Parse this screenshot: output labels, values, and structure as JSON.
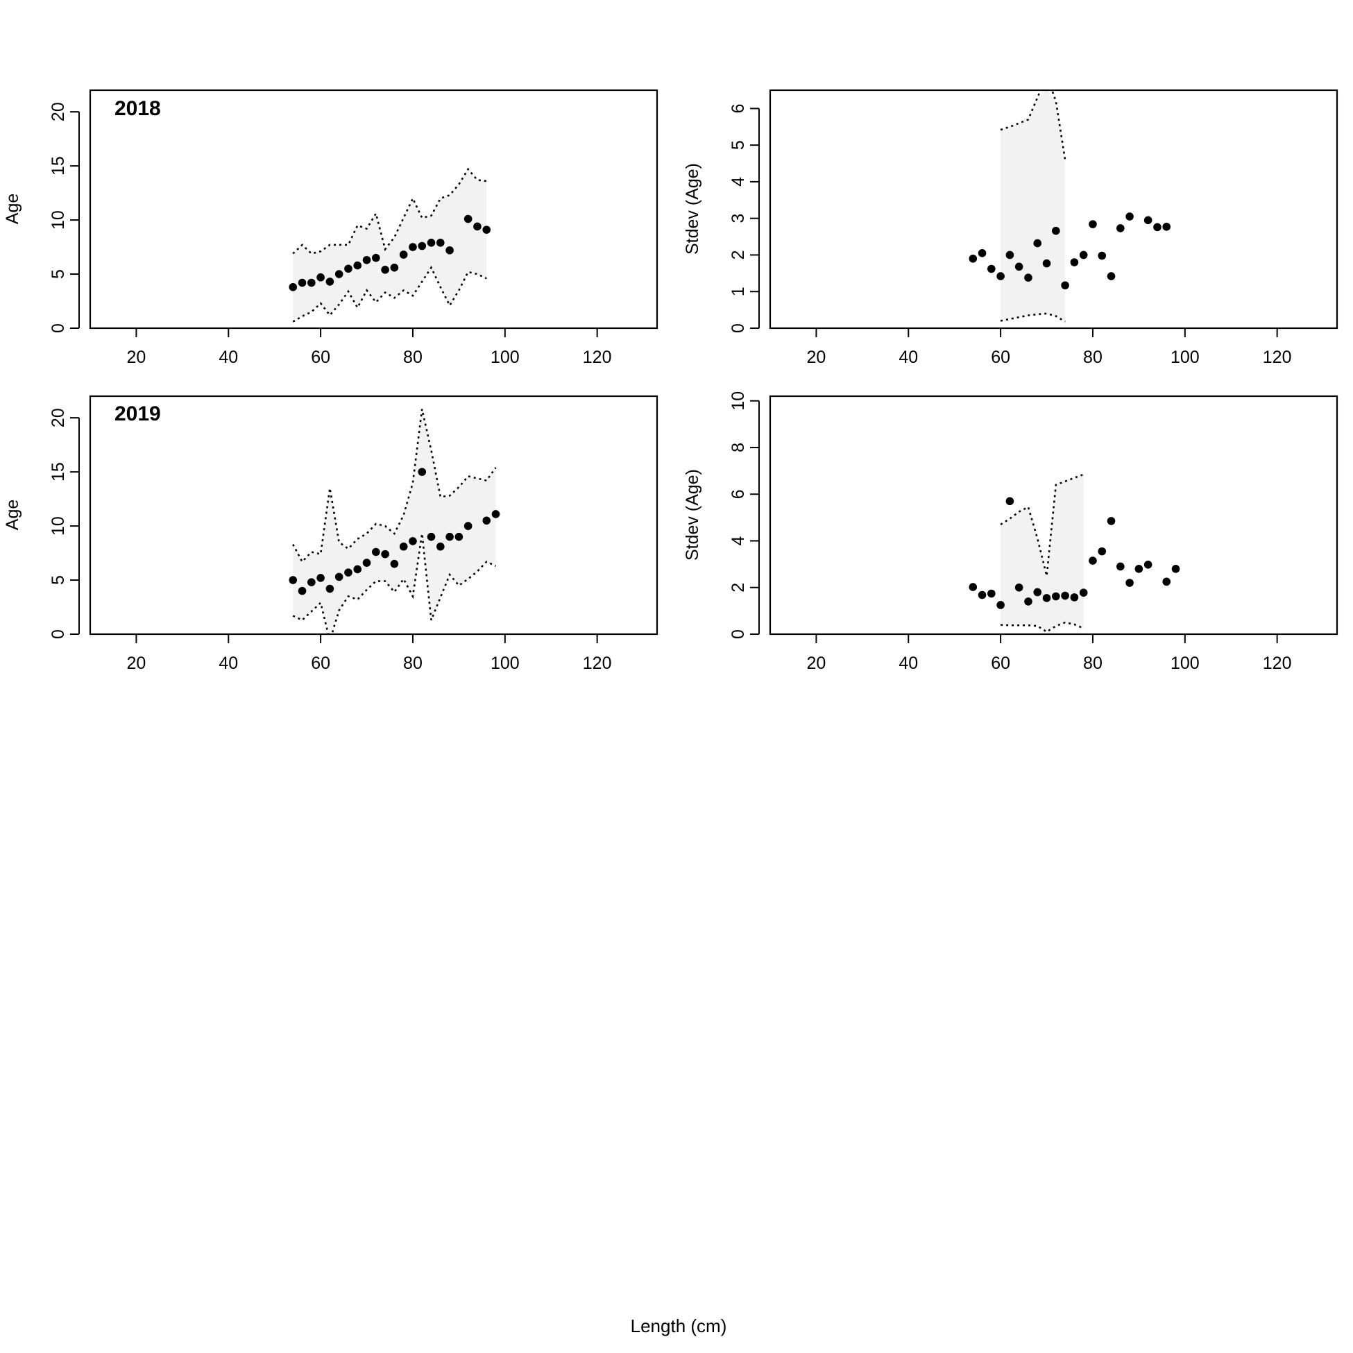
{
  "figure": {
    "xlabel": "Length (cm)"
  },
  "chart_data": [
    {
      "type": "scatter",
      "panel": "mean-age-2018",
      "title": "2018",
      "xlabel": "",
      "ylabel": "Age",
      "xlim": [
        10,
        133
      ],
      "ylim": [
        0,
        22
      ],
      "xticks": [
        20,
        40,
        60,
        80,
        100,
        120
      ],
      "yticks": [
        0,
        5,
        10,
        15,
        20
      ],
      "series": [
        {
          "x": [
            54,
            56,
            58,
            60,
            62,
            64,
            66,
            68,
            70,
            72,
            74,
            76,
            78,
            80,
            82,
            84,
            86,
            88,
            92,
            94,
            96
          ],
          "y": [
            3.8,
            4.2,
            4.2,
            4.7,
            4.3,
            5.0,
            5.5,
            5.8,
            6.3,
            6.5,
            5.4,
            5.6,
            6.8,
            7.5,
            7.6,
            7.9,
            7.9,
            7.2,
            10.1,
            9.4,
            9.1
          ]
        }
      ],
      "band": {
        "x": [
          54,
          56,
          58,
          60,
          62,
          64,
          66,
          68,
          70,
          72,
          74,
          76,
          78,
          80,
          82,
          84,
          86,
          88,
          90,
          92,
          94,
          96
        ],
        "upper": [
          6.9,
          7.7,
          6.9,
          7.1,
          7.7,
          7.7,
          7.7,
          9.5,
          9.2,
          10.6,
          7.3,
          8.4,
          10.2,
          12.0,
          10.2,
          10.4,
          12.0,
          12.3,
          13.3,
          14.7,
          13.7,
          13.6
        ],
        "lower": [
          0.6,
          1.1,
          1.5,
          2.3,
          1.2,
          2.2,
          3.4,
          1.9,
          3.5,
          2.4,
          3.3,
          2.8,
          3.5,
          3.0,
          4.3,
          5.6,
          3.8,
          2.1,
          3.5,
          5.2,
          5.0,
          4.6
        ]
      }
    },
    {
      "type": "scatter",
      "panel": "stdev-age-2018",
      "title": "",
      "xlabel": "",
      "ylabel": "Stdev (Age)",
      "xlim": [
        10,
        133
      ],
      "ylim": [
        0,
        6.5
      ],
      "xticks": [
        20,
        40,
        60,
        80,
        100,
        120
      ],
      "yticks": [
        0,
        1,
        2,
        3,
        4,
        5,
        6
      ],
      "series": [
        {
          "x": [
            54,
            56,
            58,
            60,
            62,
            64,
            66,
            68,
            70,
            72,
            74,
            76,
            78,
            80,
            82,
            84,
            86,
            88,
            92,
            94,
            96
          ],
          "y": [
            1.9,
            2.05,
            1.62,
            1.42,
            2.0,
            1.68,
            1.38,
            2.32,
            1.77,
            2.66,
            1.17,
            1.8,
            2.0,
            2.84,
            1.98,
            1.42,
            2.73,
            3.05,
            2.95,
            2.76,
            2.77
          ]
        }
      ],
      "band": {
        "x": [
          60,
          62,
          64,
          66,
          68,
          70,
          72,
          74
        ],
        "upper": [
          5.42,
          5.5,
          5.6,
          5.7,
          6.3,
          6.9,
          6.2,
          4.6
        ],
        "lower": [
          0.2,
          0.25,
          0.3,
          0.35,
          0.38,
          0.4,
          0.33,
          0.18
        ]
      }
    },
    {
      "type": "scatter",
      "panel": "mean-age-2019",
      "title": "2019",
      "xlabel": "",
      "ylabel": "Age",
      "xlim": [
        10,
        133
      ],
      "ylim": [
        0,
        22
      ],
      "xticks": [
        20,
        40,
        60,
        80,
        100,
        120
      ],
      "yticks": [
        0,
        5,
        10,
        15,
        20
      ],
      "series": [
        {
          "x": [
            54,
            56,
            58,
            60,
            62,
            64,
            66,
            68,
            70,
            72,
            74,
            76,
            78,
            80,
            82,
            84,
            86,
            88,
            90,
            92,
            96,
            98
          ],
          "y": [
            5.0,
            4.0,
            4.8,
            5.2,
            4.2,
            5.3,
            5.7,
            6.0,
            6.6,
            7.6,
            7.4,
            6.5,
            8.1,
            8.6,
            15.0,
            9.0,
            8.1,
            9.0,
            9.0,
            10.0,
            10.5,
            11.1
          ]
        }
      ],
      "band": {
        "x": [
          54,
          56,
          58,
          60,
          62,
          64,
          66,
          68,
          70,
          72,
          74,
          76,
          78,
          80,
          82,
          84,
          86,
          88,
          90,
          92,
          94,
          96,
          98
        ],
        "upper": [
          8.3,
          6.7,
          7.6,
          7.4,
          13.5,
          8.5,
          7.9,
          8.8,
          9.3,
          10.2,
          10.0,
          9.3,
          11.0,
          14.0,
          20.8,
          17.0,
          12.7,
          12.8,
          13.6,
          14.6,
          14.4,
          14.2,
          15.4
        ],
        "lower": [
          1.7,
          1.3,
          2.1,
          2.9,
          -0.6,
          2.2,
          3.5,
          3.2,
          4.1,
          4.9,
          4.9,
          3.9,
          5.1,
          3.5,
          9.3,
          1.3,
          3.4,
          5.5,
          4.5,
          5.1,
          5.8,
          6.7,
          6.3
        ]
      }
    },
    {
      "type": "scatter",
      "panel": "stdev-age-2019",
      "title": "",
      "xlabel": "",
      "ylabel": "Stdev (Age)",
      "xlim": [
        10,
        133
      ],
      "ylim": [
        0,
        10.2
      ],
      "xticks": [
        20,
        40,
        60,
        80,
        100,
        120
      ],
      "yticks": [
        0,
        2,
        4,
        6,
        8,
        10
      ],
      "series": [
        {
          "x": [
            54,
            56,
            58,
            60,
            62,
            64,
            66,
            68,
            70,
            72,
            74,
            76,
            78,
            80,
            82,
            84,
            86,
            88,
            90,
            92,
            96,
            98
          ],
          "y": [
            2.02,
            1.68,
            1.74,
            1.25,
            5.7,
            2.0,
            1.4,
            1.8,
            1.55,
            1.62,
            1.65,
            1.58,
            1.78,
            3.15,
            3.55,
            4.85,
            2.9,
            2.2,
            2.8,
            2.98,
            2.25,
            2.8
          ]
        }
      ],
      "band": {
        "x": [
          60,
          62,
          64,
          66,
          68,
          70,
          72,
          74,
          76,
          78
        ],
        "upper": [
          4.7,
          4.95,
          5.25,
          5.45,
          4.1,
          2.5,
          6.4,
          6.55,
          6.7,
          6.85
        ],
        "lower": [
          0.4,
          0.38,
          0.38,
          0.38,
          0.35,
          0.1,
          0.35,
          0.5,
          0.42,
          0.25
        ]
      }
    }
  ],
  "style": {
    "band_fill": "#f2f2f2",
    "point_color": "#000000",
    "line_color": "#000000"
  }
}
